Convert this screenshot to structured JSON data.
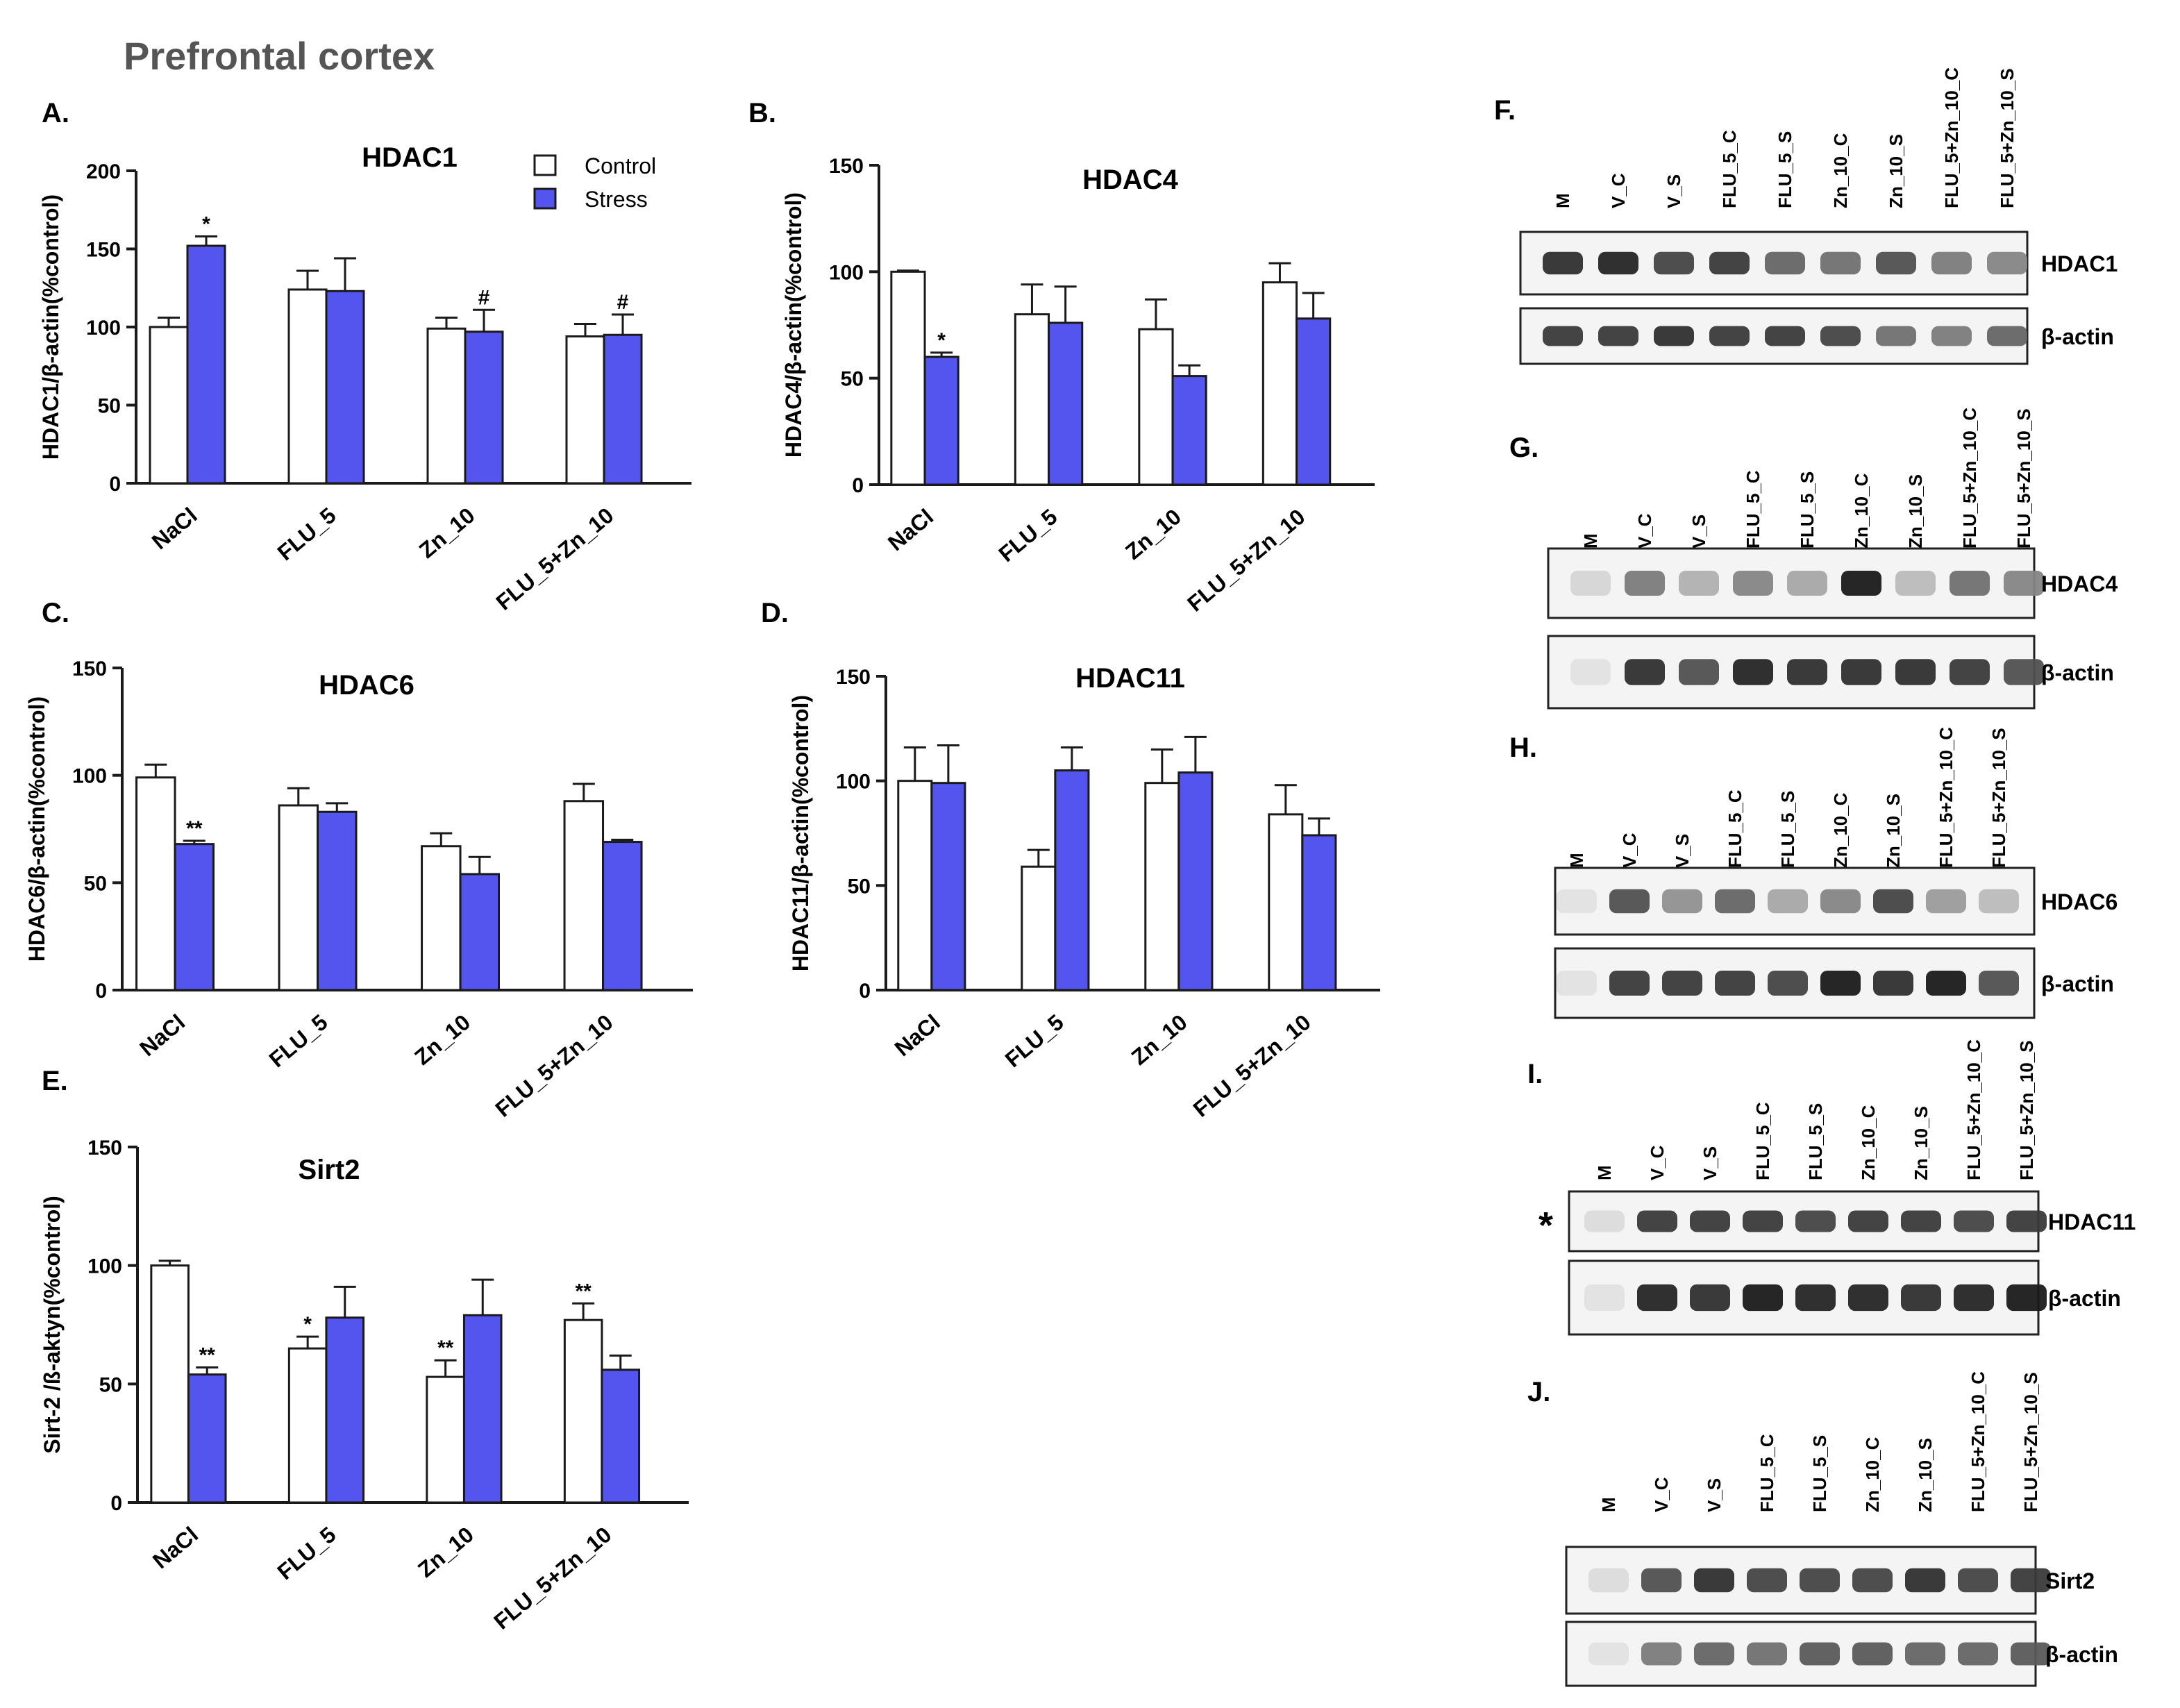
{
  "figure_title": "Prefrontal cortex",
  "colors": {
    "control": "#ffffff",
    "stress": "#5454ee",
    "axis": "#1a1a1a"
  },
  "legend": {
    "control": "Control",
    "stress": "Stress"
  },
  "chart_data": [
    {
      "id": "A",
      "panel_label": "A.",
      "type": "bar",
      "title": "HDAC1",
      "ylabel": "HDAC1/β-actin(%control)",
      "ylim": [
        0,
        200
      ],
      "yticks": [
        "0",
        "50",
        "100",
        "150",
        "200"
      ],
      "categories": [
        "NaCl",
        "FLU_5",
        "Zn_10",
        "FLU_5+Zn_10"
      ],
      "series": [
        {
          "name": "Control",
          "values": [
            100,
            124,
            99,
            94
          ],
          "errors": [
            6,
            12,
            7,
            8
          ],
          "marks": [
            "",
            "",
            "",
            ""
          ]
        },
        {
          "name": "Stress",
          "values": [
            152,
            123,
            97,
            95
          ],
          "errors": [
            6,
            21,
            14,
            13
          ],
          "marks": [
            "*",
            "",
            "#",
            "#"
          ]
        }
      ]
    },
    {
      "id": "B",
      "panel_label": "B.",
      "type": "bar",
      "title": "HDAC4",
      "ylabel": "HDAC4/β-actin(%control)",
      "ylim": [
        0,
        150
      ],
      "yticks": [
        "0",
        "50",
        "100",
        "150"
      ],
      "categories": [
        "NaCl",
        "FLU_5",
        "Zn_10",
        "FLU_5+Zn_10"
      ],
      "series": [
        {
          "name": "Control",
          "values": [
            100,
            80,
            73,
            95
          ],
          "errors": [
            0.5,
            14,
            14,
            9
          ],
          "marks": [
            "",
            "",
            "",
            ""
          ]
        },
        {
          "name": "Stress",
          "values": [
            60,
            76,
            51,
            78
          ],
          "errors": [
            2,
            17,
            5,
            12
          ],
          "marks": [
            "*",
            "",
            "",
            ""
          ]
        }
      ]
    },
    {
      "id": "C",
      "panel_label": "C.",
      "type": "bar",
      "title": "HDAC6",
      "ylabel": "HDAC6/β-actin(%control)",
      "ylim": [
        0,
        150
      ],
      "yticks": [
        "0",
        "50",
        "100",
        "150"
      ],
      "categories": [
        "NaCl",
        "FLU_5",
        "Zn_10",
        "FLU_5+Zn_10"
      ],
      "series": [
        {
          "name": "Control",
          "values": [
            99,
            86,
            67,
            88
          ],
          "errors": [
            6,
            8,
            6,
            8
          ],
          "marks": [
            "",
            "",
            "",
            ""
          ]
        },
        {
          "name": "Stress",
          "values": [
            68,
            83,
            54,
            69
          ],
          "errors": [
            1.5,
            4,
            8,
            1
          ],
          "marks": [
            "**",
            "",
            "",
            ""
          ]
        }
      ]
    },
    {
      "id": "D",
      "panel_label": "D.",
      "type": "bar",
      "title": "HDAC11",
      "ylabel": "HDAC11/β-actin(%control)",
      "ylim": [
        0,
        150
      ],
      "yticks": [
        "0",
        "50",
        "100",
        "150"
      ],
      "categories": [
        "NaCl",
        "FLU_5",
        "Zn_10",
        "FLU_5+Zn_10"
      ],
      "series": [
        {
          "name": "Control",
          "values": [
            100,
            59,
            99,
            84
          ],
          "errors": [
            16,
            8,
            16,
            14
          ],
          "marks": [
            "",
            "",
            "",
            ""
          ]
        },
        {
          "name": "Stress",
          "values": [
            99,
            105,
            104,
            74
          ],
          "errors": [
            18,
            11,
            17,
            8
          ],
          "marks": [
            "",
            "",
            "",
            ""
          ]
        }
      ]
    },
    {
      "id": "E",
      "panel_label": "E.",
      "type": "bar",
      "title": "Sirt2",
      "ylabel": "Sirt-2 /ß-aktyn(%control)",
      "ylim": [
        0,
        150
      ],
      "yticks": [
        "0",
        "50",
        "100",
        "150"
      ],
      "categories": [
        "NaCl",
        "FLU_5",
        "Zn_10",
        "FLU_5+Zn_10"
      ],
      "series": [
        {
          "name": "Control",
          "values": [
            100,
            65,
            53,
            77
          ],
          "errors": [
            2,
            5,
            7,
            7
          ],
          "marks": [
            "",
            "*",
            "**",
            "**"
          ]
        },
        {
          "name": "Stress",
          "values": [
            54,
            78,
            79,
            56
          ],
          "errors": [
            3,
            13,
            15,
            6
          ],
          "marks": [
            "**",
            "",
            "",
            ""
          ]
        }
      ]
    }
  ],
  "blots": [
    {
      "id": "F",
      "panel_label": "F.",
      "lanes": [
        "M",
        "V_C",
        "V_S",
        "FLU_5_C",
        "FLU_5_S",
        "Zn_10_C",
        "Zn_10_S",
        "FLU_5+Zn_10_C",
        "FLU_5+Zn_10_S"
      ],
      "marker": "",
      "bands": [
        {
          "label": "HDAC1",
          "intensity": [
            0.85,
            0.9,
            0.75,
            0.8,
            0.6,
            0.55,
            0.7,
            0.5,
            0.45
          ]
        },
        {
          "label": "β-actin",
          "intensity": [
            0.8,
            0.8,
            0.85,
            0.8,
            0.8,
            0.75,
            0.55,
            0.5,
            0.6
          ]
        }
      ]
    },
    {
      "id": "G",
      "panel_label": "G.",
      "lanes": [
        "M",
        "V_C",
        "V_S",
        "FLU_5_C",
        "FLU_5_S",
        "Zn_10_C",
        "Zn_10_S",
        "FLU_5+Zn_10_C",
        "FLU_5+Zn_10_S"
      ],
      "marker": "",
      "bands": [
        {
          "label": "HDAC4",
          "intensity": [
            0.08,
            0.5,
            0.25,
            0.45,
            0.3,
            0.95,
            0.2,
            0.55,
            0.45
          ]
        },
        {
          "label": "β-actin",
          "intensity": [
            0.02,
            0.85,
            0.7,
            0.9,
            0.85,
            0.85,
            0.85,
            0.8,
            0.7
          ]
        }
      ]
    },
    {
      "id": "H",
      "panel_label": "H.",
      "lanes": [
        "M",
        "V_C",
        "V_S",
        "FLU_5_C",
        "FLU_5_S",
        "Zn_10_C",
        "Zn_10_S",
        "FLU_5+Zn_10_C",
        "FLU_5+Zn_10_S"
      ],
      "marker": "",
      "bands": [
        {
          "label": "HDAC6",
          "intensity": [
            0.02,
            0.7,
            0.4,
            0.6,
            0.3,
            0.45,
            0.75,
            0.35,
            0.2
          ]
        },
        {
          "label": "β-actin",
          "intensity": [
            0.02,
            0.8,
            0.8,
            0.8,
            0.75,
            0.95,
            0.85,
            0.95,
            0.7
          ]
        }
      ]
    },
    {
      "id": "I",
      "panel_label": "I.",
      "lanes": [
        "M",
        "V_C",
        "V_S",
        "FLU_5_C",
        "FLU_5_S",
        "Zn_10_C",
        "Zn_10_S",
        "FLU_5+Zn_10_C",
        "FLU_5+Zn_10_S"
      ],
      "marker": "*",
      "bands": [
        {
          "label": "HDAC11",
          "intensity": [
            0.05,
            0.8,
            0.8,
            0.8,
            0.75,
            0.8,
            0.8,
            0.75,
            0.8
          ]
        },
        {
          "label": "β-actin",
          "intensity": [
            0.02,
            0.9,
            0.85,
            0.95,
            0.9,
            0.9,
            0.85,
            0.9,
            0.95
          ]
        }
      ]
    },
    {
      "id": "J",
      "panel_label": "J.",
      "lanes": [
        "M",
        "V_C",
        "V_S",
        "FLU_5_C",
        "FLU_5_S",
        "Zn_10_C",
        "Zn_10_S",
        "FLU_5+Zn_10_C",
        "FLU_5+Zn_10_S"
      ],
      "marker": "",
      "bands": [
        {
          "label": "Sirt2",
          "intensity": [
            0.05,
            0.7,
            0.85,
            0.75,
            0.75,
            0.75,
            0.85,
            0.75,
            0.8
          ]
        },
        {
          "label": "β-actin",
          "intensity": [
            0.02,
            0.5,
            0.6,
            0.55,
            0.65,
            0.65,
            0.6,
            0.6,
            0.65
          ]
        }
      ]
    }
  ]
}
